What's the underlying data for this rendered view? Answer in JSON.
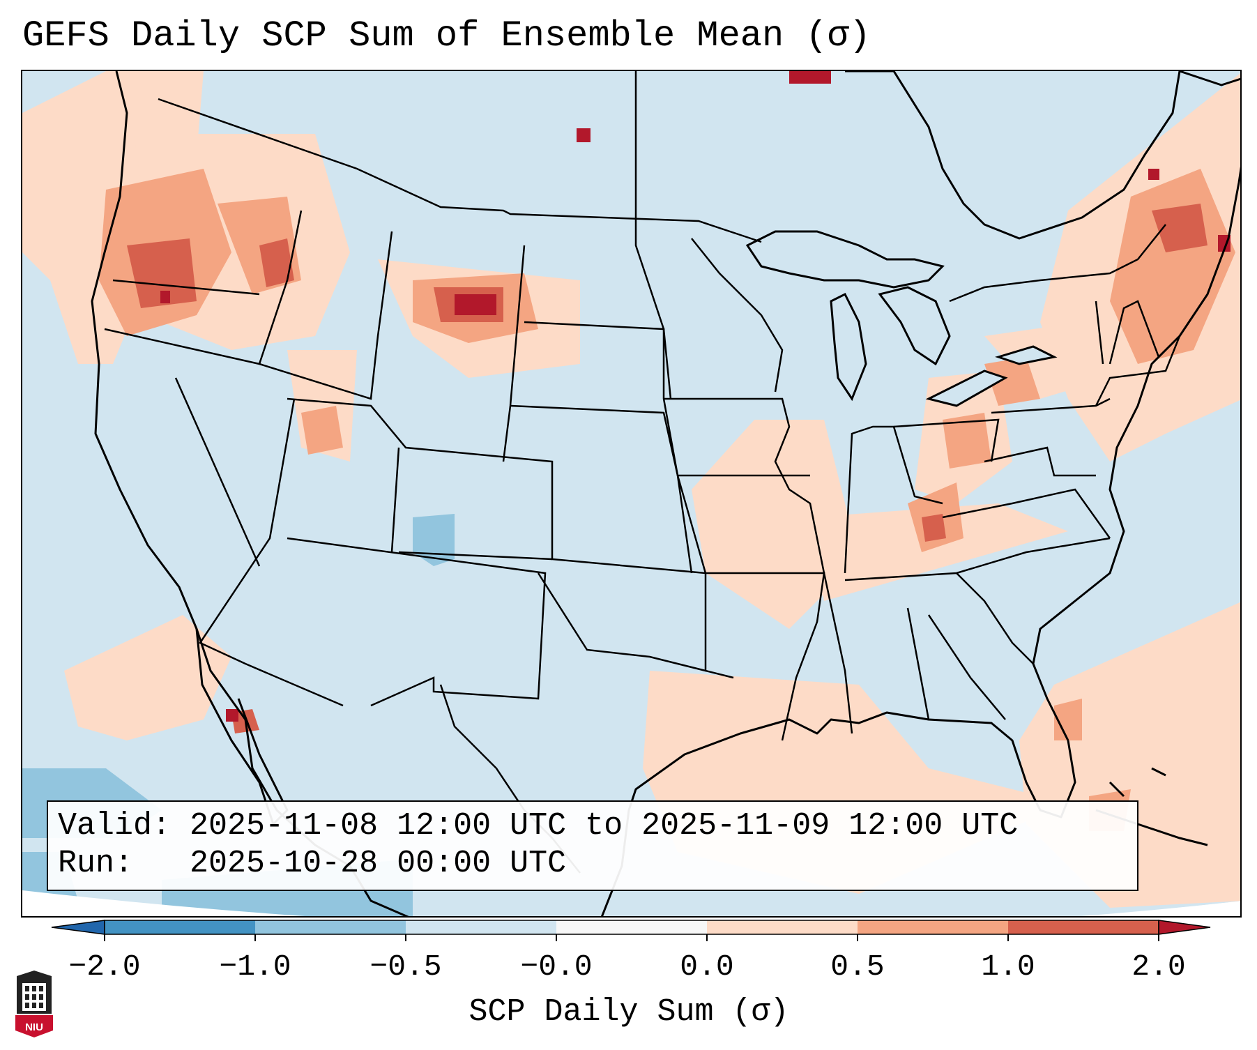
{
  "title": "GEFS Daily SCP Sum of Ensemble Mean (σ)",
  "info": {
    "valid_label": "Valid:",
    "valid_value": "2025-11-08 12:00 UTC to 2025-11-09 12:00 UTC",
    "run_label": "Run:",
    "run_value": "2025-10-28 00:00 UTC"
  },
  "colorbar": {
    "label": "SCP Daily Sum (σ)",
    "ticks": [
      "−2.0",
      "−1.0",
      "−0.5",
      "−0.0",
      "0.0",
      "0.5",
      "1.0",
      "2.0"
    ],
    "colors": [
      "#2166ac",
      "#4393c3",
      "#92c5de",
      "#d1e5f0",
      "#f7f7f7",
      "#fddbc7",
      "#f4a582",
      "#d6604d",
      "#b2182b"
    ]
  },
  "map": {
    "background_value_color": "#d1e5f0",
    "positive_light_color": "#fddbc7",
    "positive_mid_color": "#f4a582",
    "positive_high_color": "#d6604d",
    "positive_max_color": "#b2182b",
    "negative_light_color": "#92c5de"
  },
  "logo": {
    "text": "NIU"
  }
}
